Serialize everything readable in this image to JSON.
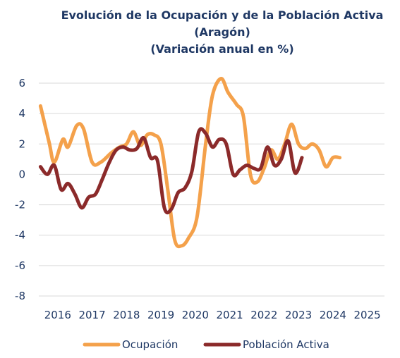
{
  "chart_data": {
    "type": "line",
    "title": "Evolución de la Ocupación y de la Población Activa",
    "subtitle_1": "(Aragón)",
    "subtitle_2": "(Variación anual en %)",
    "ylim": [
      -8,
      6
    ],
    "yticks": [
      "6",
      "4",
      "2",
      "0",
      "-2",
      "-4",
      "-6",
      "-8"
    ],
    "xlim": [
      2015.45,
      2025.5
    ],
    "xticks": [
      "2016",
      "2017",
      "2018",
      "2019",
      "2020",
      "2021",
      "2022",
      "2023",
      "2024",
      "2025"
    ],
    "grid": "horizontal",
    "legend": "bottom",
    "series": [
      {
        "name": "Ocupación",
        "color": "#f4a14b",
        "points": [
          [
            2015.5,
            4.5
          ],
          [
            2015.75,
            2.1
          ],
          [
            2015.9,
            0.8
          ],
          [
            2016.15,
            2.3
          ],
          [
            2016.3,
            1.8
          ],
          [
            2016.55,
            3.2
          ],
          [
            2016.75,
            3.0
          ],
          [
            2017.0,
            0.8
          ],
          [
            2017.25,
            0.8
          ],
          [
            2017.55,
            1.4
          ],
          [
            2017.8,
            1.8
          ],
          [
            2018.0,
            2.0
          ],
          [
            2018.2,
            2.8
          ],
          [
            2018.4,
            1.9
          ],
          [
            2018.6,
            2.6
          ],
          [
            2018.8,
            2.6
          ],
          [
            2019.0,
            2.0
          ],
          [
            2019.2,
            -1.0
          ],
          [
            2019.4,
            -4.3
          ],
          [
            2019.6,
            -4.7
          ],
          [
            2019.8,
            -4.2
          ],
          [
            2020.05,
            -2.8
          ],
          [
            2020.3,
            2.0
          ],
          [
            2020.5,
            5.2
          ],
          [
            2020.75,
            6.3
          ],
          [
            2020.95,
            5.4
          ],
          [
            2021.2,
            4.6
          ],
          [
            2021.4,
            3.8
          ],
          [
            2021.6,
            0.0
          ],
          [
            2021.8,
            -0.5
          ],
          [
            2022.0,
            0.4
          ],
          [
            2022.2,
            1.6
          ],
          [
            2022.4,
            1.0
          ],
          [
            2022.6,
            2.0
          ],
          [
            2022.8,
            3.3
          ],
          [
            2023.0,
            2.0
          ],
          [
            2023.2,
            1.7
          ],
          [
            2023.4,
            2.0
          ],
          [
            2023.6,
            1.6
          ],
          [
            2023.8,
            0.5
          ],
          [
            2024.0,
            1.1
          ],
          [
            2024.2,
            1.1
          ]
        ]
      },
      {
        "name": "Población Activa",
        "color": "#8b2a2a",
        "points": [
          [
            2015.5,
            0.5
          ],
          [
            2015.7,
            0.0
          ],
          [
            2015.9,
            0.6
          ],
          [
            2016.1,
            -1.0
          ],
          [
            2016.3,
            -0.6
          ],
          [
            2016.5,
            -1.3
          ],
          [
            2016.7,
            -2.2
          ],
          [
            2016.9,
            -1.5
          ],
          [
            2017.1,
            -1.3
          ],
          [
            2017.3,
            -0.3
          ],
          [
            2017.5,
            0.8
          ],
          [
            2017.7,
            1.6
          ],
          [
            2017.9,
            1.8
          ],
          [
            2018.1,
            1.6
          ],
          [
            2018.3,
            1.7
          ],
          [
            2018.5,
            2.4
          ],
          [
            2018.7,
            1.1
          ],
          [
            2018.9,
            0.9
          ],
          [
            2019.1,
            -2.2
          ],
          [
            2019.3,
            -2.3
          ],
          [
            2019.5,
            -1.2
          ],
          [
            2019.7,
            -0.9
          ],
          [
            2019.9,
            0.2
          ],
          [
            2020.1,
            2.8
          ],
          [
            2020.3,
            2.7
          ],
          [
            2020.5,
            1.8
          ],
          [
            2020.7,
            2.3
          ],
          [
            2020.9,
            2.0
          ],
          [
            2021.1,
            0.0
          ],
          [
            2021.3,
            0.3
          ],
          [
            2021.5,
            0.6
          ],
          [
            2021.7,
            0.4
          ],
          [
            2021.9,
            0.4
          ],
          [
            2022.1,
            1.8
          ],
          [
            2022.3,
            0.6
          ],
          [
            2022.5,
            1.0
          ],
          [
            2022.7,
            2.2
          ],
          [
            2022.9,
            0.1
          ],
          [
            2023.1,
            1.1
          ]
        ]
      }
    ]
  }
}
